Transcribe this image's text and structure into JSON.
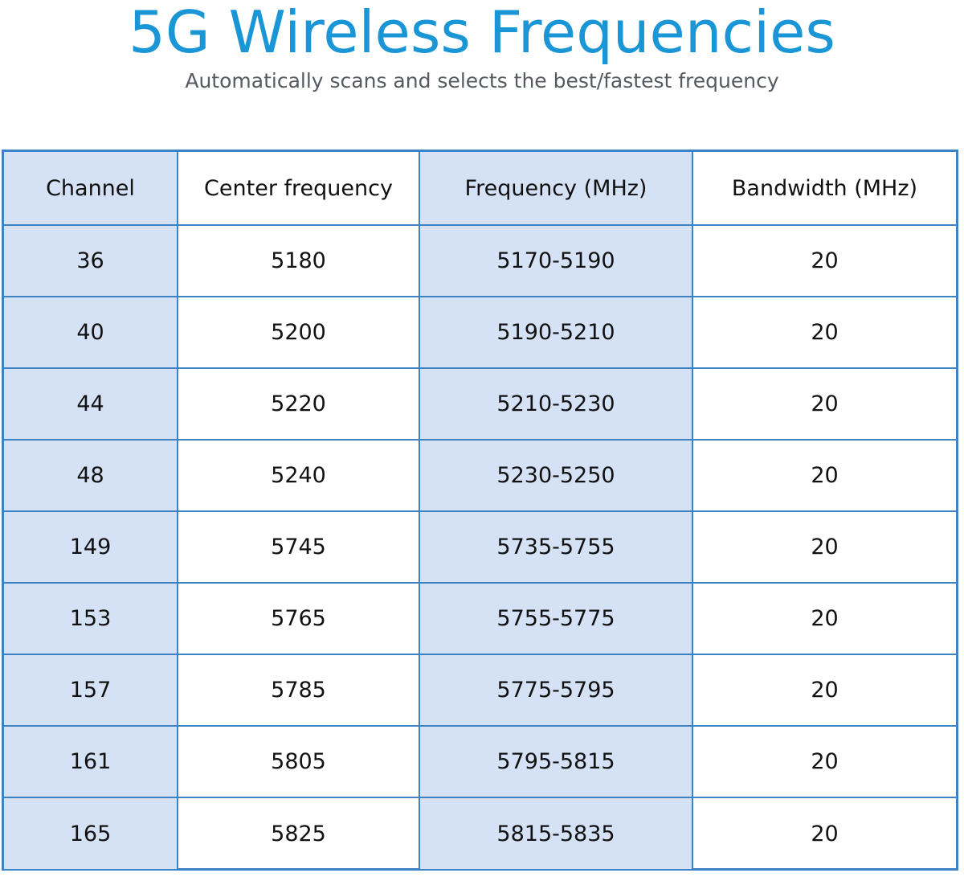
{
  "title": "5G Wireless Frequencies",
  "subtitle": "Automatically scans and selects the best/fastest frequency",
  "colors": {
    "title": "#1a95d6",
    "subtitle": "#555a60",
    "border": "#3b83c4",
    "shaded_column": "#d5e1f4"
  },
  "table": {
    "headers": [
      "Channel",
      "Center frequency",
      "Frequency (MHz)",
      "Bandwidth (MHz)"
    ],
    "rows": [
      [
        "36",
        "5180",
        "5170-5190",
        "20"
      ],
      [
        "40",
        "5200",
        "5190-5210",
        "20"
      ],
      [
        "44",
        "5220",
        "5210-5230",
        "20"
      ],
      [
        "48",
        "5240",
        "5230-5250",
        "20"
      ],
      [
        "149",
        "5745",
        "5735-5755",
        "20"
      ],
      [
        "153",
        "5765",
        "5755-5775",
        "20"
      ],
      [
        "157",
        "5785",
        "5775-5795",
        "20"
      ],
      [
        "161",
        "5805",
        "5795-5815",
        "20"
      ],
      [
        "165",
        "5825",
        "5815-5835",
        "20"
      ]
    ]
  }
}
